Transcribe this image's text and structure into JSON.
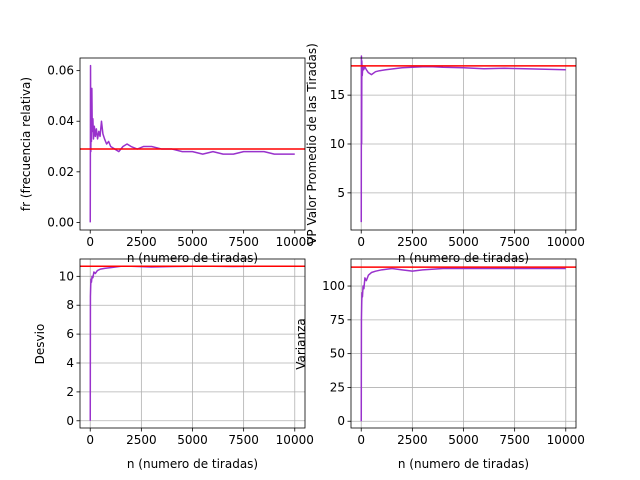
{
  "colors": {
    "series": "#9932cc",
    "reference": "#ff0000",
    "grid": "#b0b0b0"
  },
  "chart_data": [
    {
      "type": "line",
      "xlabel": "n (numero de tiradas)",
      "ylabel": "fr (frecuencia relativa)",
      "xlim": [
        -500,
        10500
      ],
      "ylim": [
        -0.003,
        0.065
      ],
      "grid": false,
      "xticks": [
        0,
        2500,
        5000,
        7500,
        10000
      ],
      "yticks": [
        0.0,
        0.02,
        0.04,
        0.06
      ],
      "ytick_labels": [
        "0.00",
        "0.02",
        "0.04",
        "0.06"
      ],
      "reference_line": 0.029,
      "series": [
        {
          "x": [
            1,
            15,
            30,
            45,
            60,
            80,
            100,
            130,
            160,
            200,
            250,
            300,
            360,
            420,
            480,
            550,
            620,
            700,
            800,
            900,
            1000,
            1200,
            1400,
            1600,
            1800,
            2000,
            2300,
            2600,
            3000,
            3500,
            4000,
            4500,
            5000,
            5500,
            6000,
            6500,
            7000,
            7500,
            8000,
            8500,
            9000,
            9500,
            10000
          ],
          "y": [
            0.0,
            0.062,
            0.028,
            0.045,
            0.032,
            0.053,
            0.036,
            0.041,
            0.033,
            0.038,
            0.034,
            0.037,
            0.033,
            0.036,
            0.034,
            0.04,
            0.035,
            0.033,
            0.031,
            0.032,
            0.03,
            0.029,
            0.028,
            0.03,
            0.031,
            0.03,
            0.029,
            0.03,
            0.03,
            0.029,
            0.029,
            0.028,
            0.028,
            0.027,
            0.028,
            0.027,
            0.027,
            0.028,
            0.028,
            0.028,
            0.027,
            0.027,
            0.027
          ]
        }
      ]
    },
    {
      "type": "line",
      "xlabel": "n (numero de tiradas)",
      "ylabel": "VP Valor Promedio de las Tiradas)",
      "xlim": [
        -500,
        10500
      ],
      "ylim": [
        1.2,
        18.8
      ],
      "grid": true,
      "xticks": [
        0,
        2500,
        5000,
        7500,
        10000
      ],
      "yticks": [
        5,
        10,
        15
      ],
      "ytick_labels": [
        "5",
        "10",
        "15"
      ],
      "reference_line": 18.0,
      "series": [
        {
          "x": [
            1,
            10,
            20,
            30,
            50,
            80,
            120,
            180,
            250,
            350,
            500,
            700,
            900,
            1200,
            1600,
            2000,
            2500,
            3000,
            3500,
            4000,
            5000,
            6000,
            7000,
            8000,
            9000,
            10000
          ],
          "y": [
            2,
            19,
            10,
            18.5,
            17,
            18,
            17.6,
            17.9,
            17.6,
            17.3,
            17.1,
            17.4,
            17.5,
            17.6,
            17.7,
            17.8,
            17.85,
            17.9,
            17.9,
            17.85,
            17.8,
            17.7,
            17.75,
            17.7,
            17.65,
            17.6
          ]
        }
      ]
    },
    {
      "type": "line",
      "xlabel": "n (numero de tiradas)",
      "ylabel": "Desvio",
      "xlim": [
        -500,
        10500
      ],
      "ylim": [
        -0.5,
        11.2
      ],
      "grid": true,
      "xticks": [
        0,
        2500,
        5000,
        7500,
        10000
      ],
      "yticks": [
        0,
        2,
        4,
        6,
        8,
        10
      ],
      "ytick_labels": [
        "0",
        "2",
        "4",
        "6",
        "8",
        "10"
      ],
      "reference_line": 10.7,
      "series": [
        {
          "x": [
            1,
            10,
            25,
            40,
            60,
            90,
            130,
            180,
            250,
            350,
            500,
            700,
            1000,
            1500,
            2000,
            3000,
            4000,
            5000,
            6000,
            7000,
            8000,
            9000,
            10000
          ],
          "y": [
            0,
            8.6,
            9.4,
            9.8,
            9.6,
            10.0,
            9.9,
            10.3,
            10.2,
            10.4,
            10.5,
            10.55,
            10.6,
            10.7,
            10.7,
            10.65,
            10.68,
            10.7,
            10.7,
            10.68,
            10.7,
            10.7,
            10.7
          ]
        }
      ]
    },
    {
      "type": "line",
      "xlabel": "n (numero de tiradas)",
      "ylabel": "Varianza",
      "xlim": [
        -500,
        10500
      ],
      "ylim": [
        -5,
        120
      ],
      "grid": true,
      "xticks": [
        0,
        2500,
        5000,
        7500,
        10000
      ],
      "yticks": [
        0,
        25,
        50,
        75,
        100
      ],
      "ytick_labels": [
        "0",
        "25",
        "50",
        "75",
        "100"
      ],
      "reference_line": 114,
      "series": [
        {
          "x": [
            1,
            10,
            25,
            40,
            60,
            90,
            130,
            180,
            250,
            350,
            500,
            700,
            1000,
            1500,
            2000,
            2500,
            3000,
            4000,
            5000,
            6000,
            7000,
            8000,
            9000,
            10000
          ],
          "y": [
            0,
            75,
            88,
            95,
            92,
            100,
            98,
            106,
            104,
            108,
            110,
            111,
            112,
            113,
            112,
            111,
            112,
            113,
            113,
            113,
            113,
            113,
            113,
            113
          ]
        }
      ]
    }
  ]
}
